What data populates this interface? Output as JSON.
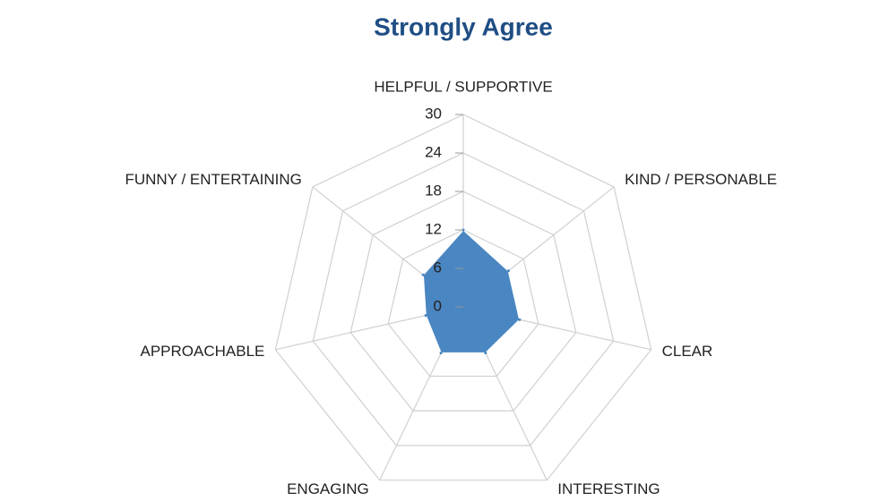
{
  "chart_data": {
    "type": "radar",
    "title": "Strongly Agree",
    "categories": [
      "HELPFUL / SUPPORTIVE",
      "KIND / PERSONABLE",
      "CLEAR",
      "INTERESTING",
      "ENGAGING",
      "APPROACHABLE",
      "FUNNY / ENTERTAINING"
    ],
    "values": [
      12,
      9,
      9,
      8,
      8,
      6,
      8
    ],
    "color": "#4a86c1",
    "rlim": [
      0,
      30
    ],
    "rticks": [
      0,
      6,
      12,
      18,
      24,
      30
    ],
    "grid": true
  }
}
